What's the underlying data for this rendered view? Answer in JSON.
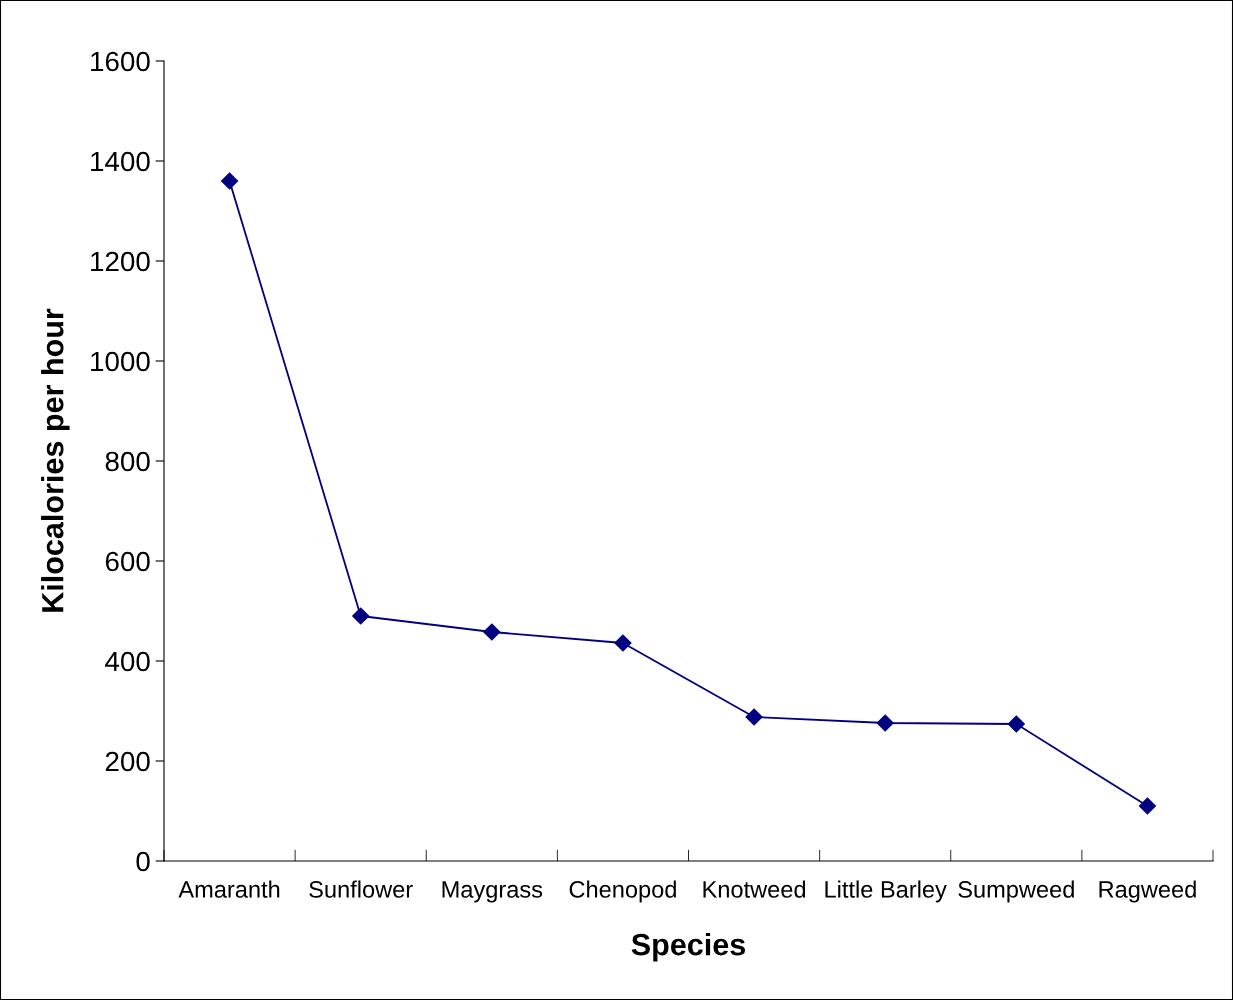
{
  "chart_data": {
    "type": "line",
    "xlabel": "Species",
    "ylabel": "Kilocalories per hour",
    "categories": [
      "Amaranth",
      "Sunflower",
      "Maygrass",
      "Chenopod",
      "Knotweed",
      "Little Barley",
      "Sumpweed",
      "Ragweed"
    ],
    "series": [
      {
        "color": "#000080",
        "values": [
          1360,
          490,
          458,
          436,
          288,
          276,
          274,
          110
        ]
      }
    ],
    "ylim": [
      0,
      1600
    ],
    "yticks": [
      0,
      200,
      400,
      600,
      800,
      1000,
      1200,
      1400,
      1600
    ],
    "grid": false,
    "legend": false,
    "marker": "diamond",
    "line_style": "solid"
  }
}
